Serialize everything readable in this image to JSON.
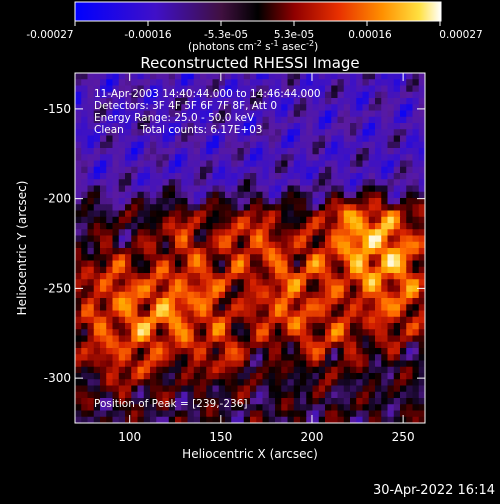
{
  "colorbar": {
    "ticks": [
      "-0.00027",
      "-0.00016",
      "-5.3e-05",
      "5.3e-05",
      "0.00016",
      "0.00027"
    ],
    "units_main": "(photons cm",
    "units_sup1": "-2",
    "units_mid1": " s",
    "units_sup2": "-1",
    "units_mid2": " asec",
    "units_sup3": "-2",
    "units_end": ")"
  },
  "footer": {
    "datetime": "30-Apr-2022 16:14"
  },
  "chart_data": {
    "type": "heatmap",
    "title": "Reconstructed RHESSI Image",
    "xlabel": "Heliocentric X (arcsec)",
    "ylabel": "Heliocentric Y (arcsec)",
    "xlim": [
      70,
      262
    ],
    "ylim": [
      -325,
      -130
    ],
    "xticks": [
      100,
      150,
      200,
      250
    ],
    "yticks": [
      -150,
      -200,
      -250,
      -300
    ],
    "colorbar_range": [
      -0.00027,
      0.00027
    ],
    "colormap": [
      "#0000ff",
      "#3a10c8",
      "#5a1aa0",
      "#000000",
      "#7a0000",
      "#d42000",
      "#ff6a00",
      "#ffb000",
      "#ffe060",
      "#ffffff"
    ],
    "annotations": [
      "11-Apr-2003 14:40:44.000 to 14:46:44.000",
      "Detectors: 3F 4F 5F 6F 7F 8F, Att 0",
      "Energy Range: 25.0 - 50.0 keV",
      "Clean     Total counts: 6.17E+03",
      "Position of Peak = [239,-236]"
    ],
    "peak": [
      239,
      -236
    ]
  }
}
